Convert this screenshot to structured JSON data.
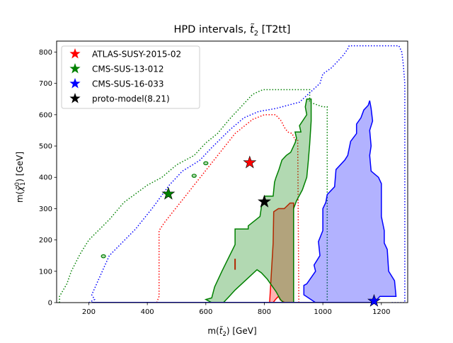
{
  "chart_data": {
    "type": "scatter",
    "title": "HPD intervals, t̃₂ [T2tt]",
    "title_main": "HPD intervals, ",
    "title_symbol": "t̃",
    "title_sub": "2",
    "title_tail": " [T2tt]",
    "xlabel": "m(t̃₂) [GeV]",
    "ylabel": "m(χ̃₁⁰) [GeV]",
    "xlabel_main": "m(",
    "xlabel_symbol": "t̃",
    "xlabel_sub": "2",
    "xlabel_tail": ") [GeV]",
    "ylabel_main": "m(",
    "ylabel_symbol": "χ̃",
    "ylabel_sup": "0",
    "ylabel_sub": "1",
    "ylabel_tail": ") [GeV]",
    "xlim": [
      90,
      1290
    ],
    "ylim": [
      0,
      835
    ],
    "xticks": [
      200,
      400,
      600,
      800,
      1000,
      1200
    ],
    "yticks": [
      0,
      100,
      200,
      300,
      400,
      500,
      600,
      700,
      800
    ],
    "grid": false,
    "legend_position": "top-left",
    "series": [
      {
        "name": "ATLAS-SUSY-2015-02",
        "color": "#ff0000",
        "best_fit": [
          750,
          447
        ],
        "filled_region": [
          [
            818,
            0
          ],
          [
            830,
            190
          ],
          [
            832,
            290
          ],
          [
            848,
            300
          ],
          [
            868,
            300
          ],
          [
            888,
            318
          ],
          [
            900,
            318
          ],
          [
            900,
            0
          ],
          [
            870,
            0
          ],
          [
            855,
            8
          ],
          [
            848,
            20
          ],
          [
            838,
            10
          ],
          [
            830,
            0
          ]
        ],
        "dotted_region": [
          [
            432,
            0
          ],
          [
            440,
            20
          ],
          [
            440,
            230
          ],
          [
            458,
            255
          ],
          [
            700,
            540
          ],
          [
            760,
            585
          ],
          [
            800,
            600
          ],
          [
            838,
            600
          ],
          [
            858,
            580
          ],
          [
            868,
            560
          ],
          [
            880,
            545
          ],
          [
            895,
            540
          ],
          [
            905,
            520
          ],
          [
            914,
            520
          ],
          [
            918,
            0
          ]
        ],
        "extra_line": [
          [
            700,
            105
          ],
          [
            700,
            140
          ]
        ]
      },
      {
        "name": "CMS-SUS-13-012",
        "color": "#008000",
        "best_fit": [
          472,
          347
        ],
        "filled_region": [
          [
            620,
            15
          ],
          [
            630,
            50
          ],
          [
            655,
            100
          ],
          [
            700,
            185
          ],
          [
            700,
            235
          ],
          [
            745,
            235
          ],
          [
            745,
            245
          ],
          [
            785,
            275
          ],
          [
            790,
            305
          ],
          [
            800,
            340
          ],
          [
            830,
            340
          ],
          [
            835,
            385
          ],
          [
            840,
            400
          ],
          [
            850,
            425
          ],
          [
            860,
            455
          ],
          [
            875,
            470
          ],
          [
            890,
            480
          ],
          [
            905,
            510
          ],
          [
            910,
            525
          ],
          [
            905,
            545
          ],
          [
            925,
            545
          ],
          [
            920,
            565
          ],
          [
            945,
            600
          ],
          [
            940,
            625
          ],
          [
            945,
            650
          ],
          [
            960,
            650
          ],
          [
            960,
            580
          ],
          [
            955,
            505
          ],
          [
            950,
            450
          ],
          [
            945,
            400
          ],
          [
            930,
            360
          ],
          [
            910,
            325
          ],
          [
            900,
            300
          ],
          [
            900,
            0
          ],
          [
            865,
            0
          ],
          [
            855,
            10
          ],
          [
            840,
            35
          ],
          [
            825,
            55
          ],
          [
            810,
            75
          ],
          [
            790,
            95
          ],
          [
            775,
            105
          ],
          [
            700,
            40
          ],
          [
            680,
            20
          ],
          [
            660,
            0
          ],
          [
            620,
            0
          ],
          [
            600,
            10
          ]
        ],
        "dotted_region": [
          [
            100,
            0
          ],
          [
            100,
            20
          ],
          [
            125,
            60
          ],
          [
            140,
            100
          ],
          [
            170,
            155
          ],
          [
            200,
            200
          ],
          [
            270,
            265
          ],
          [
            320,
            320
          ],
          [
            400,
            375
          ],
          [
            450,
            400
          ],
          [
            500,
            440
          ],
          [
            560,
            470
          ],
          [
            600,
            510
          ],
          [
            640,
            540
          ],
          [
            680,
            585
          ],
          [
            720,
            625
          ],
          [
            760,
            665
          ],
          [
            795,
            680
          ],
          [
            955,
            680
          ],
          [
            955,
            640
          ],
          [
            1000,
            625
          ],
          [
            1015,
            625
          ],
          [
            1015,
            0
          ]
        ],
        "island_markers": [
          [
            250,
            148
          ],
          [
            560,
            405
          ],
          [
            600,
            445
          ]
        ]
      },
      {
        "name": "CMS-SUS-16-033",
        "color": "#0000ff",
        "best_fit": [
          1175,
          5
        ],
        "filled_region": [
          [
            935,
            25
          ],
          [
            935,
            55
          ],
          [
            945,
            60
          ],
          [
            975,
            100
          ],
          [
            970,
            120
          ],
          [
            990,
            150
          ],
          [
            985,
            195
          ],
          [
            1000,
            230
          ],
          [
            1000,
            300
          ],
          [
            1010,
            320
          ],
          [
            1015,
            345
          ],
          [
            1040,
            370
          ],
          [
            1045,
            425
          ],
          [
            1075,
            455
          ],
          [
            1085,
            470
          ],
          [
            1095,
            515
          ],
          [
            1115,
            540
          ],
          [
            1115,
            570
          ],
          [
            1130,
            590
          ],
          [
            1140,
            615
          ],
          [
            1155,
            630
          ],
          [
            1160,
            645
          ],
          [
            1165,
            620
          ],
          [
            1170,
            580
          ],
          [
            1160,
            550
          ],
          [
            1165,
            500
          ],
          [
            1160,
            470
          ],
          [
            1165,
            420
          ],
          [
            1190,
            400
          ],
          [
            1200,
            380
          ],
          [
            1200,
            275
          ],
          [
            1210,
            230
          ],
          [
            1210,
            190
          ],
          [
            1220,
            170
          ],
          [
            1225,
            100
          ],
          [
            1245,
            70
          ],
          [
            1250,
            20
          ],
          [
            1195,
            20
          ],
          [
            1175,
            0
          ],
          [
            1000,
            0
          ],
          [
            975,
            0
          ]
        ],
        "dotted_region": [
          [
            200,
            0
          ],
          [
            220,
            10
          ],
          [
            210,
            25
          ],
          [
            270,
            150
          ],
          [
            360,
            235
          ],
          [
            420,
            305
          ],
          [
            475,
            375
          ],
          [
            520,
            420
          ],
          [
            555,
            440
          ],
          [
            580,
            455
          ],
          [
            620,
            495
          ],
          [
            680,
            550
          ],
          [
            730,
            590
          ],
          [
            780,
            610
          ],
          [
            840,
            620
          ],
          [
            880,
            630
          ],
          [
            920,
            640
          ],
          [
            990,
            700
          ],
          [
            1000,
            730
          ],
          [
            1030,
            750
          ],
          [
            1070,
            790
          ],
          [
            1085,
            810
          ],
          [
            1090,
            820
          ],
          [
            1260,
            820
          ],
          [
            1270,
            800
          ],
          [
            1275,
            760
          ],
          [
            1280,
            700
          ],
          [
            1280,
            0
          ],
          [
            1230,
            0
          ]
        ],
        "bottom_line": [
          [
            210,
            0
          ],
          [
            1175,
            0
          ]
        ]
      },
      {
        "name": "proto-model(8.21)",
        "color": "#000000",
        "best_fit": [
          800,
          322
        ]
      }
    ]
  }
}
